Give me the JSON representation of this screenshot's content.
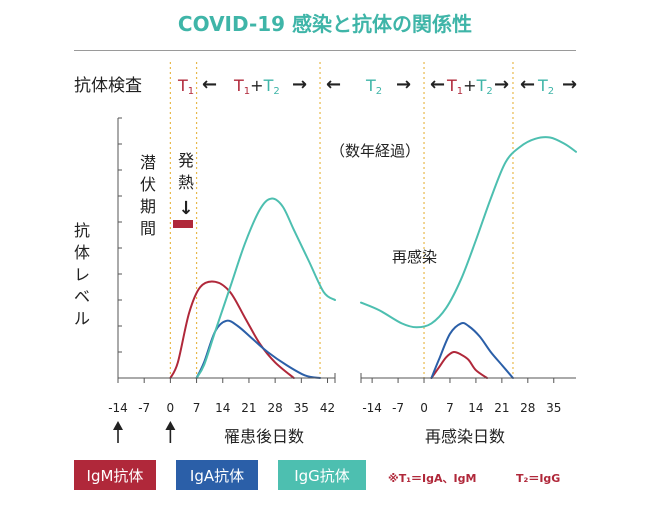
{
  "title": "COVID-19 感染と抗体の関係性",
  "colors": {
    "igm": "#b0283a",
    "iga": "#2b5fa8",
    "igg": "#4dbfb0",
    "teal": "#3fb5a8",
    "axis": "#555555",
    "guide": "#e8b84a"
  },
  "test_row": {
    "label": "抗体検査",
    "t1": "T",
    "t1_sub": "1",
    "t2": "T",
    "t2_sub": "2",
    "plus": "+",
    "arrow_left": "←",
    "arrow_right": "→"
  },
  "annotations": {
    "latent": "潜伏期間",
    "fever": "発熱",
    "fever_arrow": "↓",
    "years": "（数年経過）",
    "reinfection": "再感染",
    "y_label": "抗体レベル"
  },
  "legend": [
    {
      "label": "IgM抗体",
      "color": "#b0283a"
    },
    {
      "label": "IgA抗体",
      "color": "#2b5fa8"
    },
    {
      "label": "IgG抗体",
      "color": "#4dbfb0"
    }
  ],
  "notes": {
    "t1": "※T₁＝IgA、IgM",
    "t2": "T₂＝IgG"
  },
  "chart_data": [
    {
      "type": "line",
      "xlabel": "罹患後日数",
      "ylabel": "抗体レベル",
      "xticks": [
        -14,
        -7,
        0,
        7,
        14,
        21,
        28,
        35,
        42
      ],
      "xlim": [
        -14,
        44
      ],
      "ylim": [
        0,
        10
      ],
      "guides": [
        0,
        7,
        40
      ],
      "onset_arrows": [
        -14,
        0
      ],
      "series": [
        {
          "name": "IgM抗体",
          "color": "#b0283a",
          "points": [
            [
              0,
              0
            ],
            [
              2,
              0.6
            ],
            [
              5,
              2.5
            ],
            [
              8,
              3.5
            ],
            [
              12,
              3.7
            ],
            [
              16,
              3.3
            ],
            [
              20,
              2.3
            ],
            [
              24,
              1.3
            ],
            [
              28,
              0.6
            ],
            [
              33,
              0
            ]
          ]
        },
        {
          "name": "IgA抗体",
          "color": "#2b5fa8",
          "points": [
            [
              7,
              0
            ],
            [
              9,
              0.6
            ],
            [
              12,
              1.8
            ],
            [
              15,
              2.2
            ],
            [
              18,
              2.0
            ],
            [
              22,
              1.5
            ],
            [
              26,
              1.0
            ],
            [
              31,
              0.5
            ],
            [
              36,
              0.1
            ],
            [
              40,
              0
            ]
          ]
        },
        {
          "name": "IgG抗体",
          "color": "#4dbfb0",
          "points": [
            [
              7,
              0
            ],
            [
              9,
              0.5
            ],
            [
              12,
              1.8
            ],
            [
              16,
              3.5
            ],
            [
              20,
              5.2
            ],
            [
              24,
              6.5
            ],
            [
              27,
              6.9
            ],
            [
              30,
              6.6
            ],
            [
              33,
              5.7
            ],
            [
              37,
              4.5
            ],
            [
              41,
              3.3
            ],
            [
              44,
              3.0
            ]
          ]
        }
      ]
    },
    {
      "type": "line",
      "xlabel": "再感染日数",
      "xticks": [
        -14,
        -7,
        0,
        7,
        14,
        21,
        28,
        35
      ],
      "xlim": [
        -17,
        41
      ],
      "ylim": [
        0,
        10
      ],
      "guides": [
        0,
        24
      ],
      "series": [
        {
          "name": "IgM抗体",
          "color": "#b0283a",
          "points": [
            [
              2,
              0
            ],
            [
              4,
              0.4
            ],
            [
              6,
              0.8
            ],
            [
              8,
              1.0
            ],
            [
              10,
              0.9
            ],
            [
              12,
              0.7
            ],
            [
              14,
              0.3
            ],
            [
              17,
              0
            ]
          ]
        },
        {
          "name": "IgA抗体",
          "color": "#2b5fa8",
          "points": [
            [
              2,
              0
            ],
            [
              4,
              0.7
            ],
            [
              7,
              1.7
            ],
            [
              10,
              2.1
            ],
            [
              12,
              2.0
            ],
            [
              15,
              1.6
            ],
            [
              18,
              1.0
            ],
            [
              21,
              0.5
            ],
            [
              24,
              0
            ]
          ]
        },
        {
          "name": "IgG抗体",
          "color": "#4dbfb0",
          "points": [
            [
              -17,
              2.9
            ],
            [
              -12,
              2.6
            ],
            [
              -6,
              2.1
            ],
            [
              -2,
              1.95
            ],
            [
              2,
              2.1
            ],
            [
              6,
              2.7
            ],
            [
              10,
              3.8
            ],
            [
              14,
              5.3
            ],
            [
              18,
              6.9
            ],
            [
              22,
              8.3
            ],
            [
              26,
              8.9
            ],
            [
              30,
              9.2
            ],
            [
              34,
              9.25
            ],
            [
              38,
              9.0
            ],
            [
              41,
              8.7
            ]
          ]
        }
      ]
    }
  ]
}
